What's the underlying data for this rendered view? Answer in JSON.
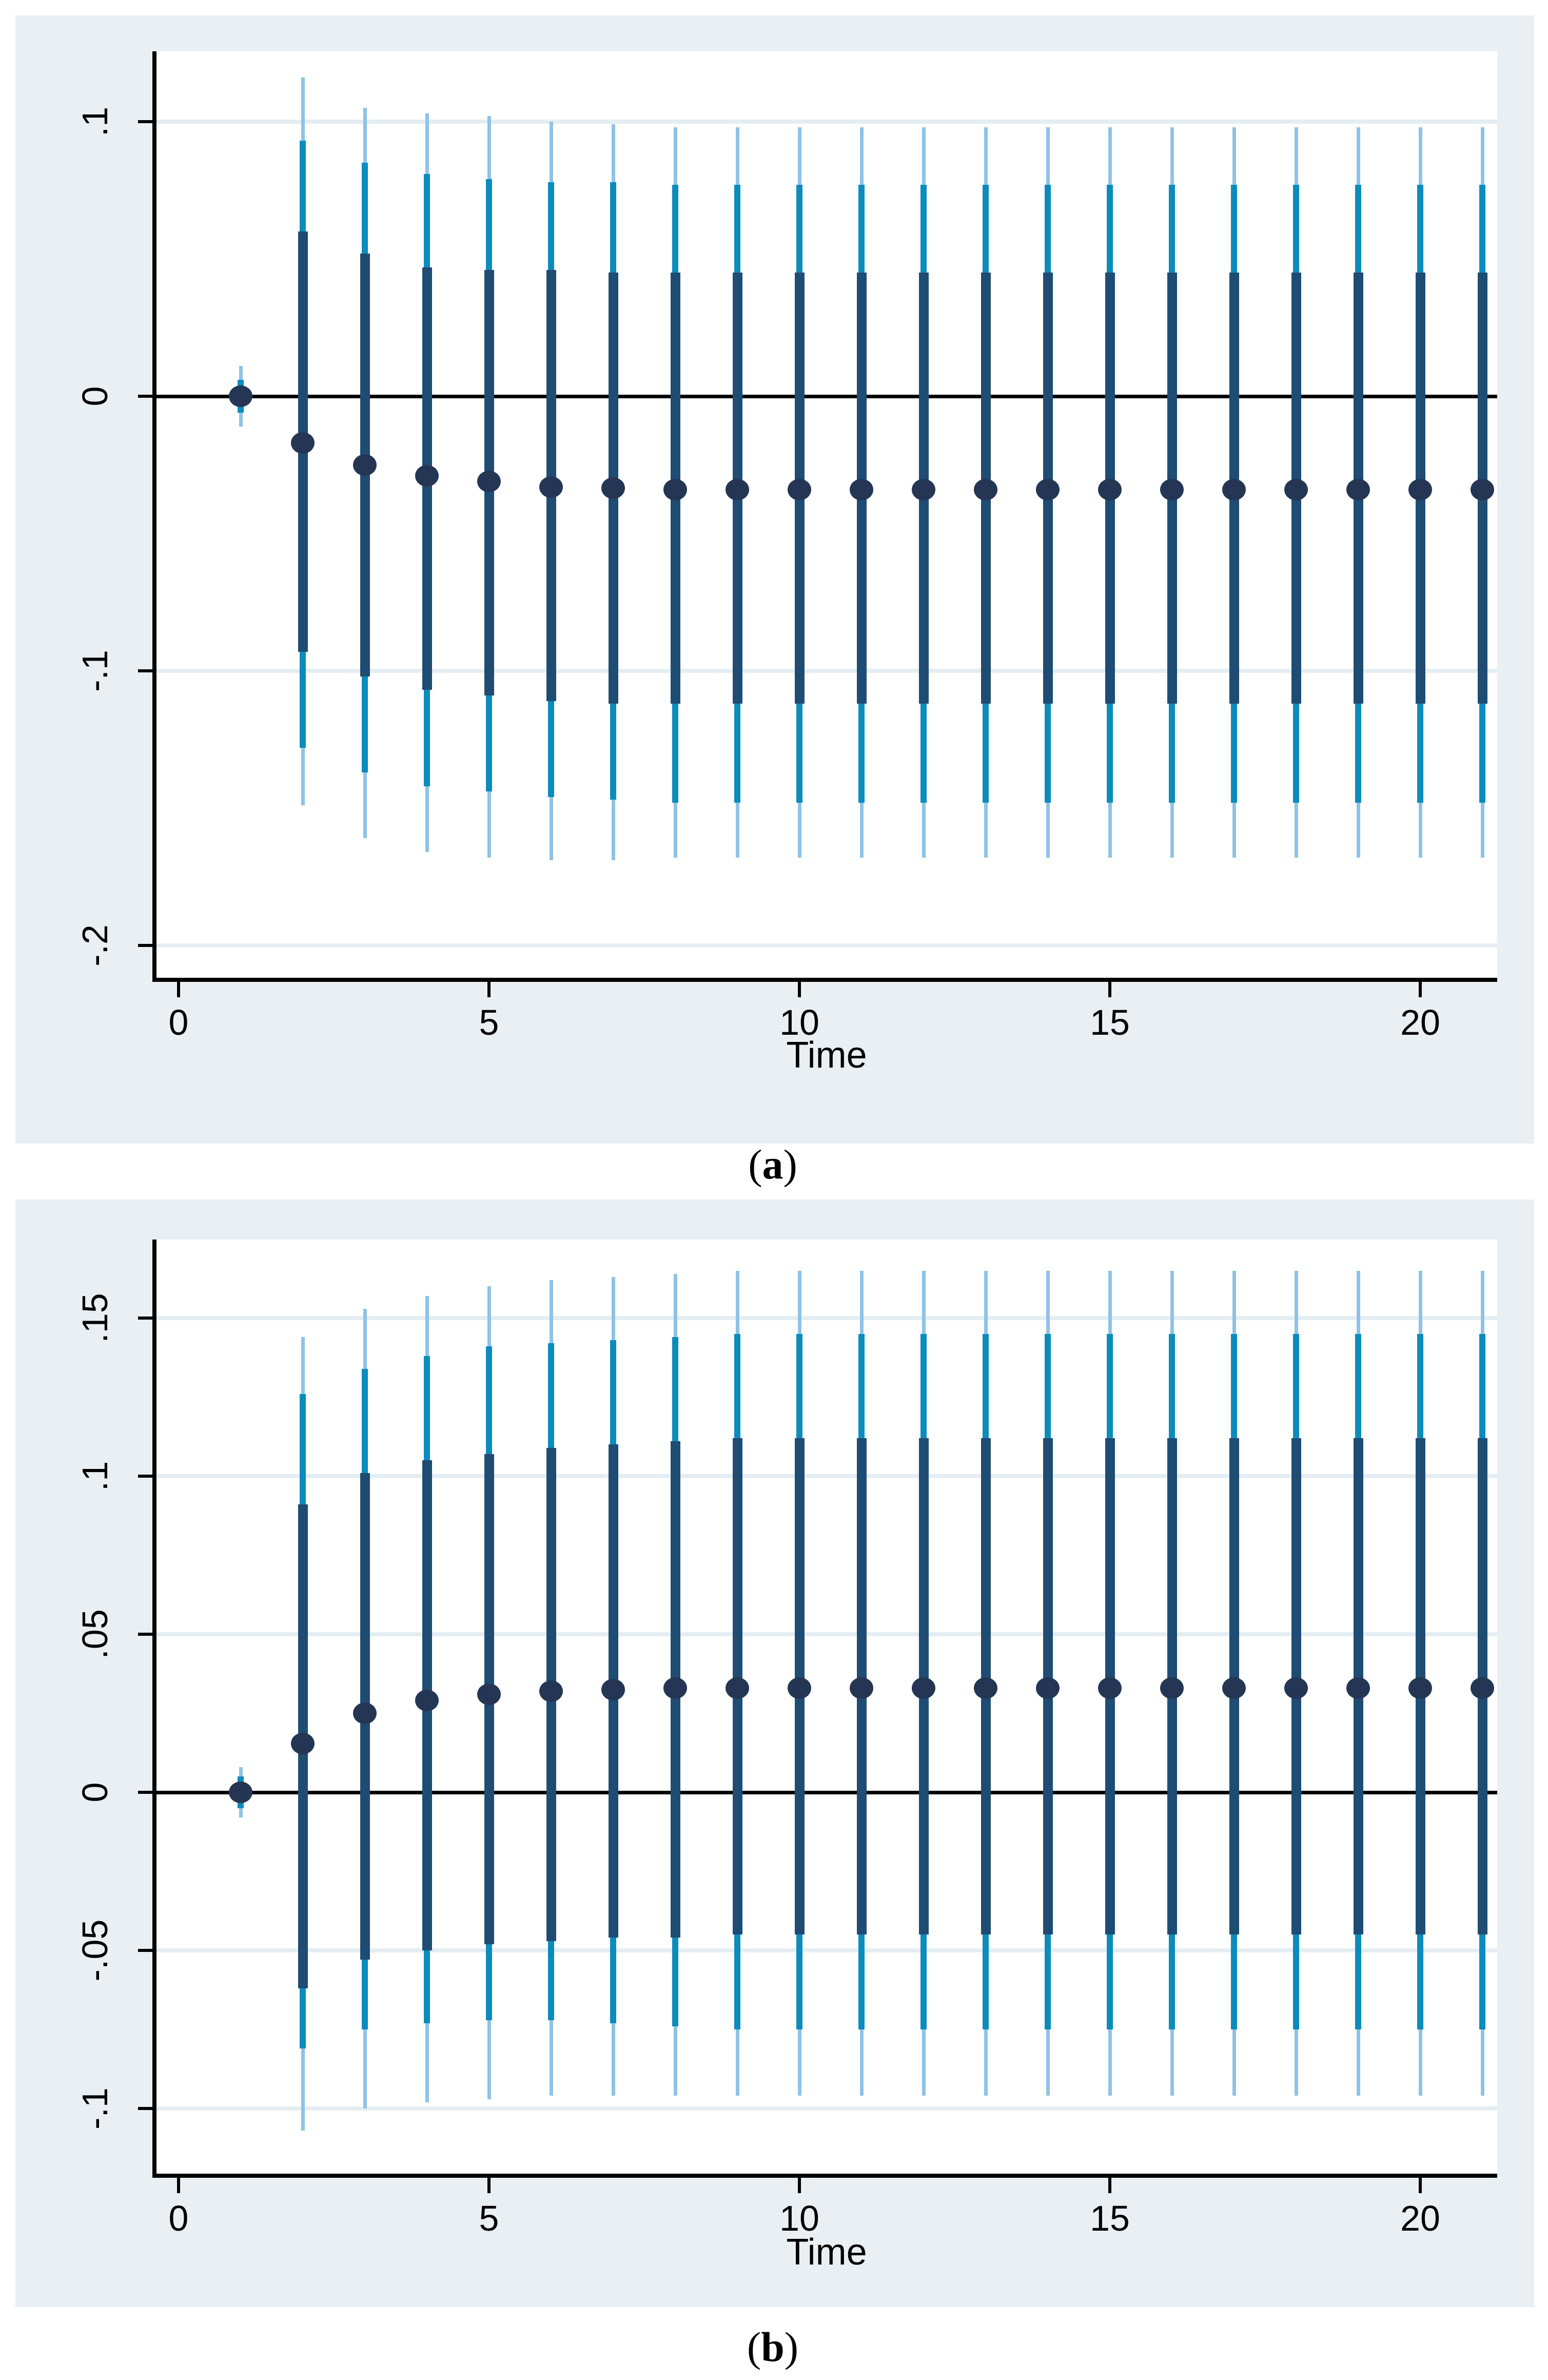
{
  "figure": {
    "captions": {
      "a": {
        "open": "(",
        "letter": "a",
        "close": ")"
      },
      "b": {
        "open": "(",
        "letter": "b",
        "close": ")"
      }
    }
  },
  "colors": {
    "page_bg": "#ffffff",
    "panel_bg": "#e9eff3",
    "plot_bg": "#ffffff",
    "grid": "#e4edf2",
    "axis": "#000000",
    "inner_band": "#1f4c73",
    "middle_band": "#0b8cbd",
    "outer_band": "#8fc2e6",
    "dot": "#253655"
  },
  "chart_data": [
    {
      "id": "a",
      "type": "scatter",
      "subtype": "point-estimate-with-3-level-error-bars",
      "title": "",
      "xlabel": "Time",
      "ylabel": "",
      "legend_position": "none",
      "grid": "horizontal",
      "xlim": [
        -0.35,
        21.2
      ],
      "ylim": [
        -0.212,
        0.126
      ],
      "xticks": [
        {
          "v": 0,
          "label": "0"
        },
        {
          "v": 5,
          "label": "5"
        },
        {
          "v": 10,
          "label": "10"
        },
        {
          "v": 15,
          "label": "15"
        },
        {
          "v": 20,
          "label": "20"
        }
      ],
      "yticks": [
        {
          "v": 0.1,
          "label": ".1"
        },
        {
          "v": 0,
          "label": "0"
        },
        {
          "v": -0.1,
          "label": "-.1"
        },
        {
          "v": -0.2,
          "label": "-.2"
        }
      ],
      "zero_reference_line": 0,
      "points": [
        {
          "t": 1,
          "dot": 0.0,
          "inner": [
            -0.003,
            0.003
          ],
          "middle": [
            -0.006,
            0.006
          ],
          "outer": [
            -0.011,
            0.011
          ]
        },
        {
          "t": 2,
          "dot": -0.017,
          "inner": [
            -0.093,
            0.06
          ],
          "middle": [
            -0.128,
            0.093
          ],
          "outer": [
            -0.149,
            0.116
          ]
        },
        {
          "t": 3,
          "dot": -0.025,
          "inner": [
            -0.102,
            0.052
          ],
          "middle": [
            -0.137,
            0.085
          ],
          "outer": [
            -0.161,
            0.105
          ]
        },
        {
          "t": 4,
          "dot": -0.029,
          "inner": [
            -0.107,
            0.047
          ],
          "middle": [
            -0.142,
            0.081
          ],
          "outer": [
            -0.166,
            0.103
          ]
        },
        {
          "t": 5,
          "dot": -0.031,
          "inner": [
            -0.109,
            0.046
          ],
          "middle": [
            -0.144,
            0.079
          ],
          "outer": [
            -0.168,
            0.102
          ]
        },
        {
          "t": 6,
          "dot": -0.033,
          "inner": [
            -0.111,
            0.046
          ],
          "middle": [
            -0.146,
            0.078
          ],
          "outer": [
            -0.169,
            0.1
          ]
        },
        {
          "t": 7,
          "dot": -0.0335,
          "inner": [
            -0.112,
            0.045
          ],
          "middle": [
            -0.147,
            0.078
          ],
          "outer": [
            -0.169,
            0.099
          ]
        },
        {
          "t": 8,
          "dot": -0.034,
          "inner": [
            -0.112,
            0.045
          ],
          "middle": [
            -0.148,
            0.077
          ],
          "outer": [
            -0.168,
            0.098
          ]
        },
        {
          "t": 9,
          "dot": -0.034,
          "inner": [
            -0.112,
            0.045
          ],
          "middle": [
            -0.148,
            0.077
          ],
          "outer": [
            -0.168,
            0.098
          ]
        },
        {
          "t": 10,
          "dot": -0.034,
          "inner": [
            -0.112,
            0.045
          ],
          "middle": [
            -0.148,
            0.077
          ],
          "outer": [
            -0.168,
            0.098
          ]
        },
        {
          "t": 11,
          "dot": -0.034,
          "inner": [
            -0.112,
            0.045
          ],
          "middle": [
            -0.148,
            0.077
          ],
          "outer": [
            -0.168,
            0.098
          ]
        },
        {
          "t": 12,
          "dot": -0.034,
          "inner": [
            -0.112,
            0.045
          ],
          "middle": [
            -0.148,
            0.077
          ],
          "outer": [
            -0.168,
            0.098
          ]
        },
        {
          "t": 13,
          "dot": -0.034,
          "inner": [
            -0.112,
            0.045
          ],
          "middle": [
            -0.148,
            0.077
          ],
          "outer": [
            -0.168,
            0.098
          ]
        },
        {
          "t": 14,
          "dot": -0.034,
          "inner": [
            -0.112,
            0.045
          ],
          "middle": [
            -0.148,
            0.077
          ],
          "outer": [
            -0.168,
            0.098
          ]
        },
        {
          "t": 15,
          "dot": -0.034,
          "inner": [
            -0.112,
            0.045
          ],
          "middle": [
            -0.148,
            0.077
          ],
          "outer": [
            -0.168,
            0.098
          ]
        },
        {
          "t": 16,
          "dot": -0.034,
          "inner": [
            -0.112,
            0.045
          ],
          "middle": [
            -0.148,
            0.077
          ],
          "outer": [
            -0.168,
            0.098
          ]
        },
        {
          "t": 17,
          "dot": -0.034,
          "inner": [
            -0.112,
            0.045
          ],
          "middle": [
            -0.148,
            0.077
          ],
          "outer": [
            -0.168,
            0.098
          ]
        },
        {
          "t": 18,
          "dot": -0.034,
          "inner": [
            -0.112,
            0.045
          ],
          "middle": [
            -0.148,
            0.077
          ],
          "outer": [
            -0.168,
            0.098
          ]
        },
        {
          "t": 19,
          "dot": -0.034,
          "inner": [
            -0.112,
            0.045
          ],
          "middle": [
            -0.148,
            0.077
          ],
          "outer": [
            -0.168,
            0.098
          ]
        },
        {
          "t": 20,
          "dot": -0.034,
          "inner": [
            -0.112,
            0.045
          ],
          "middle": [
            -0.148,
            0.077
          ],
          "outer": [
            -0.168,
            0.098
          ]
        },
        {
          "t": 21,
          "dot": -0.034,
          "inner": [
            -0.112,
            0.045
          ],
          "middle": [
            -0.148,
            0.077
          ],
          "outer": [
            -0.168,
            0.098
          ]
        }
      ]
    },
    {
      "id": "b",
      "type": "scatter",
      "subtype": "point-estimate-with-3-level-error-bars",
      "title": "",
      "xlabel": "Time",
      "ylabel": "",
      "legend_position": "none",
      "grid": "horizontal",
      "xlim": [
        -0.35,
        21.2
      ],
      "ylim": [
        -0.121,
        0.175
      ],
      "xticks": [
        {
          "v": 0,
          "label": "0"
        },
        {
          "v": 5,
          "label": "5"
        },
        {
          "v": 10,
          "label": "10"
        },
        {
          "v": 15,
          "label": "15"
        },
        {
          "v": 20,
          "label": "20"
        }
      ],
      "yticks": [
        {
          "v": 0.15,
          "label": ".15"
        },
        {
          "v": 0.1,
          "label": ".1"
        },
        {
          "v": 0.05,
          "label": ".05"
        },
        {
          "v": 0,
          "label": "0"
        },
        {
          "v": -0.05,
          "label": "-.05"
        },
        {
          "v": -0.1,
          "label": "-.1"
        }
      ],
      "zero_reference_line": 0,
      "points": [
        {
          "t": 1,
          "dot": 0.0,
          "inner": [
            -0.0025,
            0.0025
          ],
          "middle": [
            -0.005,
            0.005
          ],
          "outer": [
            -0.008,
            0.008
          ]
        },
        {
          "t": 2,
          "dot": 0.0155,
          "inner": [
            -0.062,
            0.091
          ],
          "middle": [
            -0.081,
            0.126
          ],
          "outer": [
            -0.107,
            0.144
          ]
        },
        {
          "t": 3,
          "dot": 0.025,
          "inner": [
            -0.053,
            0.101
          ],
          "middle": [
            -0.075,
            0.134
          ],
          "outer": [
            -0.1,
            0.153
          ]
        },
        {
          "t": 4,
          "dot": 0.029,
          "inner": [
            -0.05,
            0.105
          ],
          "middle": [
            -0.073,
            0.138
          ],
          "outer": [
            -0.098,
            0.157
          ]
        },
        {
          "t": 5,
          "dot": 0.031,
          "inner": [
            -0.048,
            0.107
          ],
          "middle": [
            -0.072,
            0.141
          ],
          "outer": [
            -0.097,
            0.16
          ]
        },
        {
          "t": 6,
          "dot": 0.032,
          "inner": [
            -0.047,
            0.109
          ],
          "middle": [
            -0.072,
            0.142
          ],
          "outer": [
            -0.096,
            0.162
          ]
        },
        {
          "t": 7,
          "dot": 0.0325,
          "inner": [
            -0.046,
            0.11
          ],
          "middle": [
            -0.073,
            0.143
          ],
          "outer": [
            -0.096,
            0.163
          ]
        },
        {
          "t": 8,
          "dot": 0.033,
          "inner": [
            -0.046,
            0.111
          ],
          "middle": [
            -0.074,
            0.144
          ],
          "outer": [
            -0.096,
            0.164
          ]
        },
        {
          "t": 9,
          "dot": 0.033,
          "inner": [
            -0.045,
            0.112
          ],
          "middle": [
            -0.075,
            0.145
          ],
          "outer": [
            -0.096,
            0.165
          ]
        },
        {
          "t": 10,
          "dot": 0.033,
          "inner": [
            -0.045,
            0.112
          ],
          "middle": [
            -0.075,
            0.145
          ],
          "outer": [
            -0.096,
            0.165
          ]
        },
        {
          "t": 11,
          "dot": 0.033,
          "inner": [
            -0.045,
            0.112
          ],
          "middle": [
            -0.075,
            0.145
          ],
          "outer": [
            -0.096,
            0.165
          ]
        },
        {
          "t": 12,
          "dot": 0.033,
          "inner": [
            -0.045,
            0.112
          ],
          "middle": [
            -0.075,
            0.145
          ],
          "outer": [
            -0.096,
            0.165
          ]
        },
        {
          "t": 13,
          "dot": 0.033,
          "inner": [
            -0.045,
            0.112
          ],
          "middle": [
            -0.075,
            0.145
          ],
          "outer": [
            -0.096,
            0.165
          ]
        },
        {
          "t": 14,
          "dot": 0.033,
          "inner": [
            -0.045,
            0.112
          ],
          "middle": [
            -0.075,
            0.145
          ],
          "outer": [
            -0.096,
            0.165
          ]
        },
        {
          "t": 15,
          "dot": 0.033,
          "inner": [
            -0.045,
            0.112
          ],
          "middle": [
            -0.075,
            0.145
          ],
          "outer": [
            -0.096,
            0.165
          ]
        },
        {
          "t": 16,
          "dot": 0.033,
          "inner": [
            -0.045,
            0.112
          ],
          "middle": [
            -0.075,
            0.145
          ],
          "outer": [
            -0.096,
            0.165
          ]
        },
        {
          "t": 17,
          "dot": 0.033,
          "inner": [
            -0.045,
            0.112
          ],
          "middle": [
            -0.075,
            0.145
          ],
          "outer": [
            -0.096,
            0.165
          ]
        },
        {
          "t": 18,
          "dot": 0.033,
          "inner": [
            -0.045,
            0.112
          ],
          "middle": [
            -0.075,
            0.145
          ],
          "outer": [
            -0.096,
            0.165
          ]
        },
        {
          "t": 19,
          "dot": 0.033,
          "inner": [
            -0.045,
            0.112
          ],
          "middle": [
            -0.075,
            0.145
          ],
          "outer": [
            -0.096,
            0.165
          ]
        },
        {
          "t": 20,
          "dot": 0.033,
          "inner": [
            -0.045,
            0.112
          ],
          "middle": [
            -0.075,
            0.145
          ],
          "outer": [
            -0.096,
            0.165
          ]
        },
        {
          "t": 21,
          "dot": 0.033,
          "inner": [
            -0.045,
            0.112
          ],
          "middle": [
            -0.075,
            0.145
          ],
          "outer": [
            -0.096,
            0.165
          ]
        }
      ]
    }
  ]
}
